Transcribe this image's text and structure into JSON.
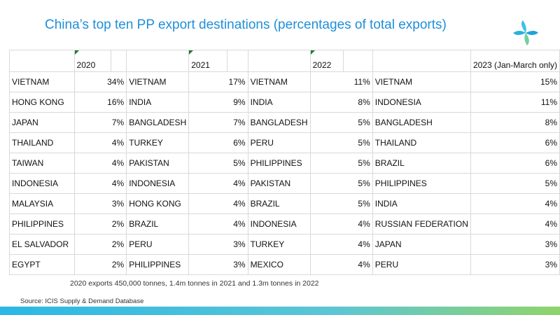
{
  "title": "China’s top ten PP export destinations (percentages of total exports)",
  "logo_icon": "icis-logo-icon",
  "columns": [
    {
      "year": "2020",
      "rows": [
        {
          "country": "VIETNAM",
          "pct": "34%"
        },
        {
          "country": "HONG KONG",
          "pct": "16%"
        },
        {
          "country": "JAPAN",
          "pct": "7%"
        },
        {
          "country": "THAILAND",
          "pct": "4%"
        },
        {
          "country": "TAIWAN",
          "pct": "4%"
        },
        {
          "country": "INDONESIA",
          "pct": "4%"
        },
        {
          "country": "MALAYSIA",
          "pct": "3%"
        },
        {
          "country": "PHILIPPINES",
          "pct": "2%"
        },
        {
          "country": "EL SALVADOR",
          "pct": "2%"
        },
        {
          "country": "EGYPT",
          "pct": "2%"
        }
      ]
    },
    {
      "year": "2021",
      "rows": [
        {
          "country": "VIETNAM",
          "pct": "17%"
        },
        {
          "country": "INDIA",
          "pct": "9%"
        },
        {
          "country": "BANGLADESH",
          "pct": "7%"
        },
        {
          "country": "TURKEY",
          "pct": "6%"
        },
        {
          "country": "PAKISTAN",
          "pct": "5%"
        },
        {
          "country": "INDONESIA",
          "pct": "4%"
        },
        {
          "country": "HONG KONG",
          "pct": "4%"
        },
        {
          "country": "BRAZIL",
          "pct": "4%"
        },
        {
          "country": "PERU",
          "pct": "3%"
        },
        {
          "country": "PHILIPPINES",
          "pct": "3%"
        }
      ]
    },
    {
      "year": "2022",
      "rows": [
        {
          "country": "VIETNAM",
          "pct": "11%"
        },
        {
          "country": "INDIA",
          "pct": "8%"
        },
        {
          "country": "BANGLADESH",
          "pct": "5%"
        },
        {
          "country": "PERU",
          "pct": "5%"
        },
        {
          "country": "PHILIPPINES",
          "pct": "5%"
        },
        {
          "country": "PAKISTAN",
          "pct": "5%"
        },
        {
          "country": "BRAZIL",
          "pct": "5%"
        },
        {
          "country": "INDONESIA",
          "pct": "4%"
        },
        {
          "country": "TURKEY",
          "pct": "4%"
        },
        {
          "country": "MEXICO",
          "pct": "4%"
        }
      ]
    },
    {
      "year": "2023 (Jan-March only)",
      "rows": [
        {
          "country": "VIETNAM",
          "pct": "15%"
        },
        {
          "country": "INDONESIA",
          "pct": "11%"
        },
        {
          "country": "BANGLADESH",
          "pct": "8%"
        },
        {
          "country": "THAILAND",
          "pct": "6%"
        },
        {
          "country": "BRAZIL",
          "pct": "6%"
        },
        {
          "country": "PHILIPPINES",
          "pct": "5%"
        },
        {
          "country": "INDIA",
          "pct": "4%"
        },
        {
          "country": "RUSSIAN FEDERATION",
          "pct": "4%"
        },
        {
          "country": "JAPAN",
          "pct": "3%"
        },
        {
          "country": "PERU",
          "pct": "3%"
        }
      ]
    }
  ],
  "note": "2020 exports 450,000 tonnes, 1.4m tonnes in 2021 and 1.3m tonnes in 2022",
  "source": "Source: ICIS Supply & Demand Database"
}
